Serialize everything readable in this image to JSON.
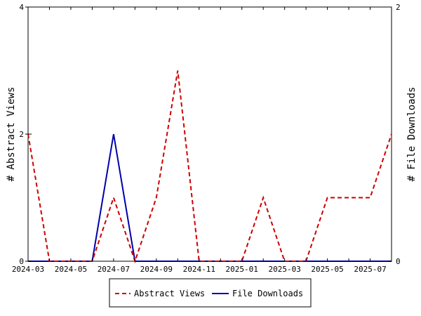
{
  "chart_data": {
    "type": "line",
    "title": "",
    "x": [
      "2024-03",
      "2024-04",
      "2024-05",
      "2024-06",
      "2024-07",
      "2024-08",
      "2024-09",
      "2024-10",
      "2024-11",
      "2024-12",
      "2025-01",
      "2025-02",
      "2025-03",
      "2025-04",
      "2025-05",
      "2025-06",
      "2025-07",
      "2025-08"
    ],
    "x_tick_labels": [
      "2024-03",
      "2024-05",
      "2024-07",
      "2024-09",
      "2024-11",
      "2025-01",
      "2025-03",
      "2025-05",
      "2025-07"
    ],
    "ylabel_left": "# Abstract Views",
    "ylabel_right": "# File Downloads",
    "ylim_left": [
      0,
      4
    ],
    "ylim_right": [
      0,
      2
    ],
    "yticks_left": [
      "0",
      "2",
      "4"
    ],
    "yticks_right": [
      "0",
      "2"
    ],
    "grid": false,
    "legend_placement": "bottom",
    "series": [
      {
        "name": "Abstract Views",
        "axis": "left",
        "style": "dashed",
        "color": "#cc0000",
        "values": [
          2,
          0,
          0,
          0,
          1,
          0,
          1,
          3,
          0,
          0,
          0,
          1,
          0,
          0,
          1,
          1,
          1,
          2
        ]
      },
      {
        "name": "File Downloads",
        "axis": "right",
        "style": "solid",
        "color": "#0000aa",
        "values": [
          0,
          0,
          0,
          0,
          1,
          0,
          0,
          0,
          0,
          0,
          0,
          0,
          0,
          0,
          0,
          0,
          0,
          0
        ]
      }
    ]
  }
}
